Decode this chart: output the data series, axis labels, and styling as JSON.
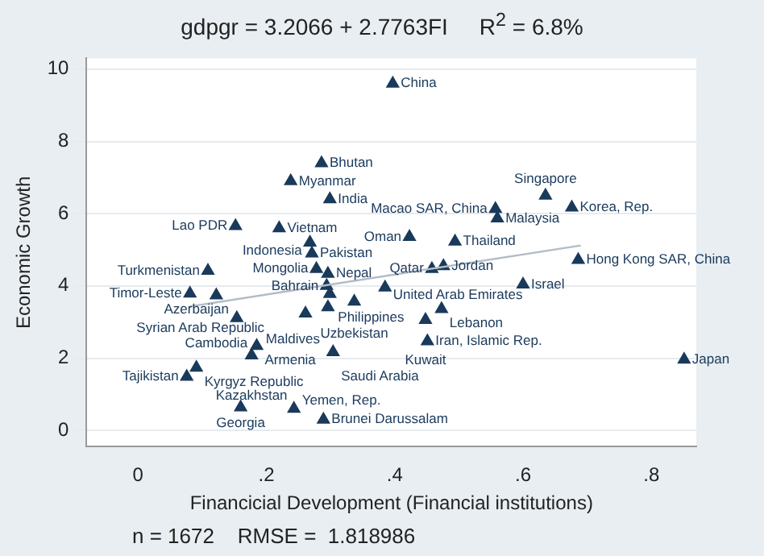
{
  "chart_data": {
    "type": "scatter",
    "title": "gdpgr = 3.2066 + 2.7763FI     R$^{2}$ = 6.8%",
    "xlabel": "Financicial Development (Financial institutions)",
    "ylabel": "Economic Growth",
    "xlim": [
      -0.08,
      0.87
    ],
    "ylim": [
      -0.45,
      10.3
    ],
    "xticks": [
      0,
      {
        "value": 0.2,
        "label": ".2"
      },
      {
        "value": 0.4,
        "label": ".4"
      },
      {
        "value": 0.6,
        "label": ".6"
      },
      {
        "value": 0.8,
        "label": ".8"
      }
    ],
    "yticks": [
      0,
      2,
      4,
      6,
      8,
      10
    ],
    "grid": "y",
    "series": [
      {
        "type": "scatter",
        "marker": "triangle",
        "color": "#1a3a5c",
        "x": [
          0.397,
          0.286,
          0.238,
          0.299,
          0.152,
          0.22,
          0.268,
          0.271,
          0.423,
          0.494,
          0.635,
          0.557,
          0.56,
          0.676,
          0.686,
          0.476,
          0.458,
          0.6,
          0.473,
          0.448,
          0.451,
          0.851,
          0.385,
          0.109,
          0.278,
          0.296,
          0.294,
          0.299,
          0.337,
          0.296,
          0.261,
          0.081,
          0.122,
          0.154,
          0.185,
          0.177,
          0.304,
          0.091,
          0.076,
          0.16,
          0.243,
          0.289
        ],
        "values": [
          9.6,
          7.4,
          6.9,
          6.4,
          5.66,
          5.6,
          5.2,
          4.9,
          5.36,
          5.23,
          6.5,
          6.13,
          5.87,
          6.17,
          4.72,
          4.55,
          4.47,
          4.04,
          3.36,
          3.06,
          2.47,
          1.96,
          3.96,
          4.42,
          4.47,
          4.34,
          4.0,
          3.78,
          3.57,
          3.41,
          3.24,
          3.79,
          3.74,
          3.11,
          2.34,
          2.08,
          2.17,
          1.74,
          1.49,
          0.64,
          0.6,
          0.3
        ]
      },
      {
        "type": "line",
        "color": "#b4bcc4",
        "x": [
          0.08,
          0.69
        ],
        "values": [
          3.43,
          5.12
        ]
      }
    ],
    "annotations": [
      {
        "text": "China",
        "x": 0.397,
        "y": 9.6
      },
      {
        "text": "Bhutan",
        "x": 0.286,
        "y": 7.4
      },
      {
        "text": "Myanmar",
        "x": 0.238,
        "y": 6.9
      },
      {
        "text": "India",
        "x": 0.299,
        "y": 6.4
      },
      {
        "text": "Lao PDR",
        "x": 0.152,
        "y": 5.66
      },
      {
        "text": "Vietnam",
        "x": 0.22,
        "y": 5.6
      },
      {
        "text": "Indonesia",
        "x": 0.268,
        "y": 5.2
      },
      {
        "text": "Pakistan",
        "x": 0.271,
        "y": 4.9
      },
      {
        "text": "Oman",
        "x": 0.423,
        "y": 5.36
      },
      {
        "text": "Thailand",
        "x": 0.494,
        "y": 5.23
      },
      {
        "text": "Singapore",
        "x": 0.635,
        "y": 6.5
      },
      {
        "text": "Macao SAR, China",
        "x": 0.557,
        "y": 6.13
      },
      {
        "text": "Malaysia",
        "x": 0.56,
        "y": 5.87
      },
      {
        "text": "Korea, Rep.",
        "x": 0.676,
        "y": 6.17
      },
      {
        "text": "Hong Kong SAR, China",
        "x": 0.686,
        "y": 4.72
      },
      {
        "text": "Jordan",
        "x": 0.476,
        "y": 4.55
      },
      {
        "text": "Qatar",
        "x": 0.458,
        "y": 4.47
      },
      {
        "text": "Israel",
        "x": 0.6,
        "y": 4.04
      },
      {
        "text": "Lebanon",
        "x": 0.473,
        "y": 3.36
      },
      {
        "text": "Kuwait",
        "x": 0.448,
        "y": 3.06
      },
      {
        "text": "Iran, Islamic Rep.",
        "x": 0.451,
        "y": 2.47
      },
      {
        "text": "Japan",
        "x": 0.851,
        "y": 1.96
      },
      {
        "text": "United Arab Emirates",
        "x": 0.385,
        "y": 3.96
      },
      {
        "text": "Turkmenistan",
        "x": 0.109,
        "y": 4.42
      },
      {
        "text": "Mongolia",
        "x": 0.278,
        "y": 4.47
      },
      {
        "text": "Nepal",
        "x": 0.296,
        "y": 4.34
      },
      {
        "text": "Bahrain",
        "x": 0.294,
        "y": 4.0
      },
      {
        "text": "Philippines",
        "x": 0.299,
        "y": 3.78
      },
      {
        "text": "Uzbekistan",
        "x": 0.337,
        "y": 3.57
      },
      {
        "text": "Maldives",
        "x": 0.296,
        "y": 3.41
      },
      {
        "text": "Syrian Arab Republic",
        "x": 0.261,
        "y": 3.24
      },
      {
        "text": "Timor-Leste",
        "x": 0.081,
        "y": 3.79
      },
      {
        "text": "Cambodia",
        "x": 0.122,
        "y": 3.74
      },
      {
        "text": "Azerbaijan",
        "x": 0.154,
        "y": 3.11
      },
      {
        "text": "Armenia",
        "x": 0.185,
        "y": 2.34
      },
      {
        "text": "Kazakhstan",
        "x": 0.177,
        "y": 2.08
      },
      {
        "text": "Saudi Arabia",
        "x": 0.304,
        "y": 2.17
      },
      {
        "text": "Kyrgyz Republic",
        "x": 0.091,
        "y": 1.74
      },
      {
        "text": "Tajikistan",
        "x": 0.076,
        "y": 1.49
      },
      {
        "text": "Georgia",
        "x": 0.16,
        "y": 0.64
      },
      {
        "text": "Yemen, Rep.",
        "x": 0.243,
        "y": 0.6
      },
      {
        "text": "Brunei Darussalam",
        "x": 0.289,
        "y": 0.3
      },
      "n = 1672    RMSE =  1.818986"
    ]
  }
}
